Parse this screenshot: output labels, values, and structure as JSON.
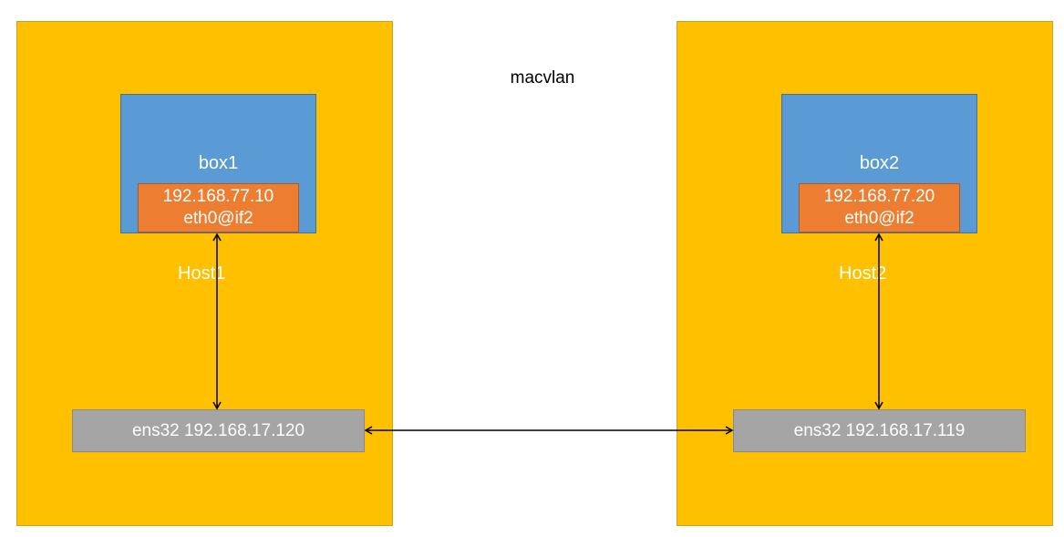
{
  "title": "macvlan",
  "hosts": [
    {
      "label": "Host1",
      "box": {
        "label": "box1",
        "ip": "192.168.77.10",
        "iface": "eth0@if2"
      },
      "nic": "ens32 192.168.17.120"
    },
    {
      "label": "Host2",
      "box": {
        "label": "box2",
        "ip": "192.168.77.20",
        "iface": "eth0@if2"
      },
      "nic": "ens32 192.168.17.119"
    }
  ],
  "colors": {
    "host_fill": "#FFC000",
    "box_fill": "#5B9BD5",
    "iface_fill": "#ED7D31",
    "nic_fill": "#A5A5A5",
    "arrow": "#000000"
  }
}
